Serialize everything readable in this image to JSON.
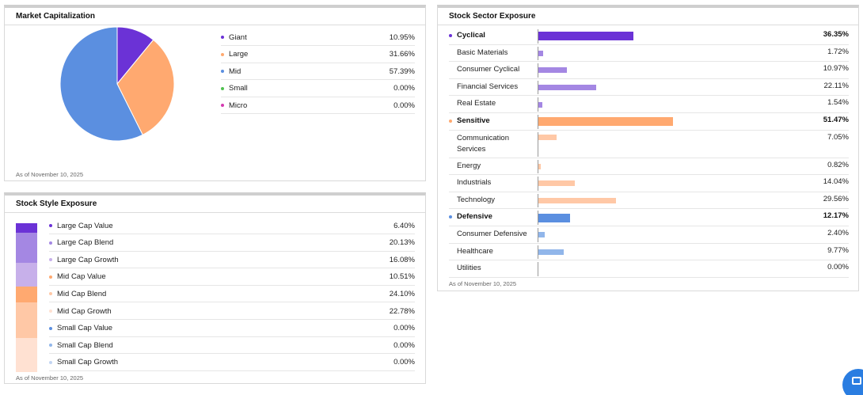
{
  "colors": {
    "giant": "#6b32d6",
    "large": "#ffa970",
    "mid": "#5b8fe0",
    "small": "#4fc14f",
    "micro": "#d43ab0"
  },
  "market_cap": {
    "title": "Market Capitalization",
    "as_of": "As of November 10, 2025",
    "items": [
      {
        "label": "Giant",
        "value": "10.95%",
        "color": "#6b32d6"
      },
      {
        "label": "Large",
        "value": "31.66%",
        "color": "#ffa970"
      },
      {
        "label": "Mid",
        "value": "57.39%",
        "color": "#5b8fe0"
      },
      {
        "label": "Small",
        "value": "0.00%",
        "color": "#4fc14f"
      },
      {
        "label": "Micro",
        "value": "0.00%",
        "color": "#d43ab0"
      }
    ]
  },
  "style": {
    "title": "Stock Style Exposure",
    "as_of": "As of November 10, 2025",
    "items": [
      {
        "label": "Large Cap Value",
        "value": "6.40%",
        "color": "#6b32d6"
      },
      {
        "label": "Large Cap Blend",
        "value": "20.13%",
        "color": "#a487e3"
      },
      {
        "label": "Large Cap Growth",
        "value": "16.08%",
        "color": "#c7b0ea"
      },
      {
        "label": "Mid Cap Value",
        "value": "10.51%",
        "color": "#ffa970"
      },
      {
        "label": "Mid Cap Blend",
        "value": "24.10%",
        "color": "#ffc8a6"
      },
      {
        "label": "Mid Cap Growth",
        "value": "22.78%",
        "color": "#ffe1d2"
      },
      {
        "label": "Small Cap Value",
        "value": "0.00%",
        "color": "#5b8fe0"
      },
      {
        "label": "Small Cap Blend",
        "value": "0.00%",
        "color": "#91b6ea"
      },
      {
        "label": "Small Cap Growth",
        "value": "0.00%",
        "color": "#c2d5f3"
      }
    ]
  },
  "sector": {
    "title": "Stock Sector Exposure",
    "as_of": "As of November 10, 2025",
    "rows": [
      {
        "label": "Cyclical",
        "value": "36.35%",
        "parent": true,
        "color": "#6b32d6"
      },
      {
        "label": "Basic Materials",
        "value": "1.72%",
        "parent": false,
        "color": "#a487e3"
      },
      {
        "label": "Consumer Cyclical",
        "value": "10.97%",
        "parent": false,
        "color": "#a487e3"
      },
      {
        "label": "Financial Services",
        "value": "22.11%",
        "parent": false,
        "color": "#a487e3"
      },
      {
        "label": "Real Estate",
        "value": "1.54%",
        "parent": false,
        "color": "#a487e3"
      },
      {
        "label": "Sensitive",
        "value": "51.47%",
        "parent": true,
        "color": "#ffa970"
      },
      {
        "label": "Communication Services",
        "value": "7.05%",
        "parent": false,
        "color": "#ffc8a6"
      },
      {
        "label": "Energy",
        "value": "0.82%",
        "parent": false,
        "color": "#ffc8a6"
      },
      {
        "label": "Industrials",
        "value": "14.04%",
        "parent": false,
        "color": "#ffc8a6"
      },
      {
        "label": "Technology",
        "value": "29.56%",
        "parent": false,
        "color": "#ffc8a6"
      },
      {
        "label": "Defensive",
        "value": "12.17%",
        "parent": true,
        "color": "#5b8fe0"
      },
      {
        "label": "Consumer Defensive",
        "value": "2.40%",
        "parent": false,
        "color": "#91b6ea"
      },
      {
        "label": "Healthcare",
        "value": "9.77%",
        "parent": false,
        "color": "#91b6ea"
      },
      {
        "label": "Utilities",
        "value": "0.00%",
        "parent": false,
        "color": "#91b6ea"
      }
    ]
  },
  "chart_data": [
    {
      "type": "pie",
      "title": "Market Capitalization",
      "categories": [
        "Giant",
        "Large",
        "Mid",
        "Small",
        "Micro"
      ],
      "values": [
        10.95,
        31.66,
        57.39,
        0.0,
        0.0
      ]
    },
    {
      "type": "bar",
      "title": "Stock Style Exposure",
      "categories": [
        "Large Cap Value",
        "Large Cap Blend",
        "Large Cap Growth",
        "Mid Cap Value",
        "Mid Cap Blend",
        "Mid Cap Growth",
        "Small Cap Value",
        "Small Cap Blend",
        "Small Cap Growth"
      ],
      "values": [
        6.4,
        20.13,
        16.08,
        10.51,
        24.1,
        22.78,
        0.0,
        0.0,
        0.0
      ]
    },
    {
      "type": "bar",
      "title": "Stock Sector Exposure",
      "categories": [
        "Cyclical",
        "Basic Materials",
        "Consumer Cyclical",
        "Financial Services",
        "Real Estate",
        "Sensitive",
        "Communication Services",
        "Energy",
        "Industrials",
        "Technology",
        "Defensive",
        "Consumer Defensive",
        "Healthcare",
        "Utilities"
      ],
      "values": [
        36.35,
        1.72,
        10.97,
        22.11,
        1.54,
        51.47,
        7.05,
        0.82,
        14.04,
        29.56,
        12.17,
        2.4,
        9.77,
        0.0
      ]
    }
  ]
}
